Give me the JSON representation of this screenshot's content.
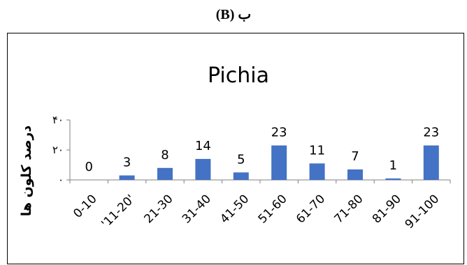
{
  "panel_label": "ب (B)",
  "chart_data": {
    "type": "bar",
    "title": "Pichia",
    "ylabel": "درصد کلون ها",
    "xlabel": "",
    "categories": [
      "0-10",
      "'11-20'",
      "21-30",
      "31-40",
      "41-50",
      "51-60",
      "61-70",
      "71-80",
      "81-90",
      "91-100"
    ],
    "values": [
      0,
      3,
      8,
      14,
      5,
      23,
      11,
      7,
      1,
      23
    ],
    "data_labels": [
      "0",
      "3",
      "8",
      "14",
      "5",
      "23",
      "11",
      "7",
      "1",
      "23"
    ],
    "ylim": [
      0,
      40
    ],
    "yticks": [
      0,
      20,
      40
    ],
    "ytick_labels": [
      "۰",
      "۲۰",
      "۴۰"
    ],
    "grid": false,
    "legend": "none",
    "bar_color": "#4472C4"
  }
}
